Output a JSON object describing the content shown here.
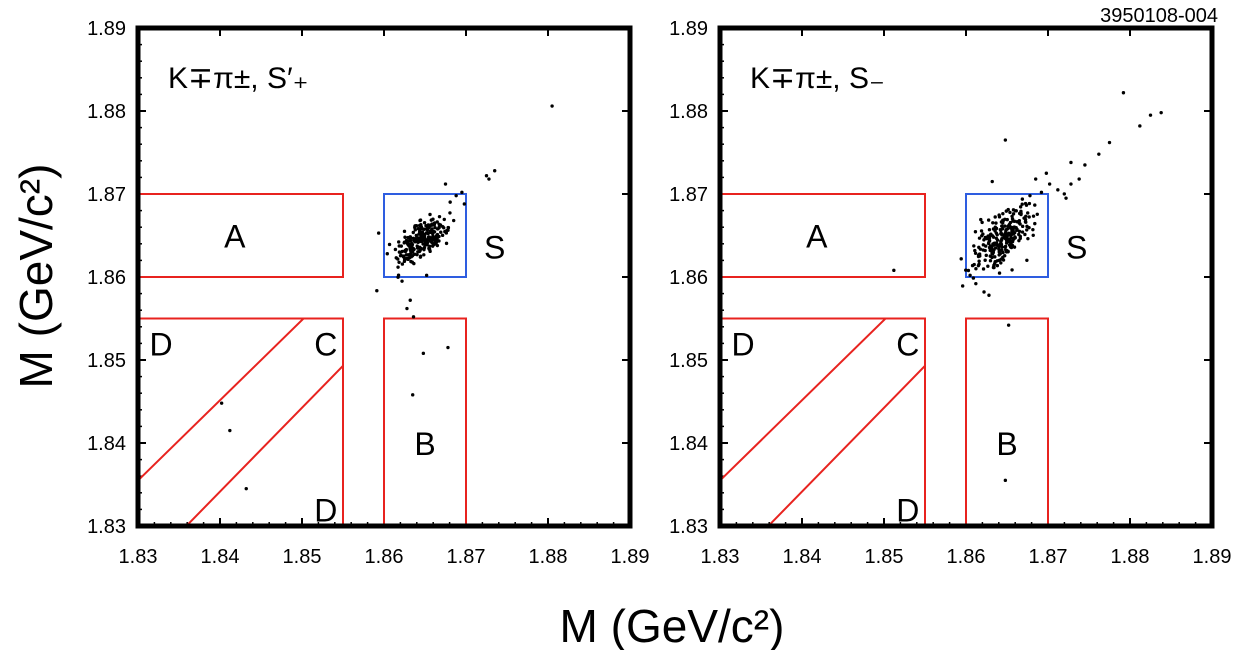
{
  "figure_id": "3950108-004",
  "axis_titles": {
    "x": "M (GeV/c²)",
    "y": "M (GeV/c²)"
  },
  "chart_data": [
    {
      "type": "scatter",
      "title": "K∓π±, S′₊",
      "xlabel": "M (GeV/c²)",
      "ylabel": "M (GeV/c²)",
      "xlim": [
        1.83,
        1.89
      ],
      "ylim": [
        1.83,
        1.89
      ],
      "x_ticks": [
        "1.83",
        "1.84",
        "1.85",
        "1.86",
        "1.87",
        "1.88",
        "1.89"
      ],
      "y_ticks": [
        "1.83",
        "1.84",
        "1.85",
        "1.86",
        "1.87",
        "1.88",
        "1.89"
      ],
      "regions": [
        {
          "label": "A",
          "color": "#e8231f",
          "shape": "rect",
          "x": [
            1.83,
            1.855
          ],
          "y": [
            1.86,
            1.87
          ]
        },
        {
          "label": "S",
          "color": "#2e5de0",
          "shape": "rect",
          "x": [
            1.86,
            1.87
          ],
          "y": [
            1.86,
            1.87
          ]
        },
        {
          "label": "B",
          "color": "#e8231f",
          "shape": "rect",
          "x": [
            1.86,
            1.87
          ],
          "y": [
            1.83,
            1.855
          ]
        },
        {
          "label": "C",
          "color": "#e8231f",
          "shape": "box_with_diagonals",
          "x": [
            1.83,
            1.855
          ],
          "y": [
            1.83,
            1.855
          ]
        },
        {
          "label": "D",
          "color": "#e8231f",
          "shape": "corner_label"
        },
        {
          "label": "D",
          "color": "#e8231f",
          "shape": "corner_label"
        }
      ],
      "signal_cluster": {
        "center": [
          1.8646,
          1.8645
        ],
        "spread": 0.0016,
        "count": 230
      },
      "points": [
        [
          1.8805,
          1.8806
        ],
        [
          1.8735,
          1.8728
        ],
        [
          1.8725,
          1.8722
        ],
        [
          1.8728,
          1.8718
        ],
        [
          1.8695,
          1.8702
        ],
        [
          1.8688,
          1.8698
        ],
        [
          1.8675,
          1.8712
        ],
        [
          1.8698,
          1.8688
        ],
        [
          1.8632,
          1.8572
        ],
        [
          1.8628,
          1.8562
        ],
        [
          1.8636,
          1.8552
        ],
        [
          1.8652,
          1.8602
        ],
        [
          1.8648,
          1.8508
        ],
        [
          1.8678,
          1.8515
        ],
        [
          1.8635,
          1.8458
        ],
        [
          1.8622,
          1.8595
        ],
        [
          1.8402,
          1.8448
        ],
        [
          1.8412,
          1.8415
        ],
        [
          1.8432,
          1.8345
        ],
        [
          1.8625,
          1.8655
        ],
        [
          1.8685,
          1.8668
        ],
        [
          1.8604,
          1.8628
        ]
      ]
    },
    {
      "type": "scatter",
      "title": "K∓π±, S₋",
      "xlabel": "M (GeV/c²)",
      "ylabel": "M (GeV/c²)",
      "xlim": [
        1.83,
        1.89
      ],
      "ylim": [
        1.83,
        1.89
      ],
      "x_ticks": [
        "1.83",
        "1.84",
        "1.85",
        "1.86",
        "1.87",
        "1.88",
        "1.89"
      ],
      "y_ticks": [
        "1.83",
        "1.84",
        "1.85",
        "1.86",
        "1.87",
        "1.88",
        "1.89"
      ],
      "regions": [
        {
          "label": "A",
          "color": "#e8231f",
          "shape": "rect",
          "x": [
            1.83,
            1.855
          ],
          "y": [
            1.86,
            1.87
          ]
        },
        {
          "label": "S",
          "color": "#2e5de0",
          "shape": "rect",
          "x": [
            1.86,
            1.87
          ],
          "y": [
            1.86,
            1.87
          ]
        },
        {
          "label": "B",
          "color": "#e8231f",
          "shape": "rect",
          "x": [
            1.86,
            1.87
          ],
          "y": [
            1.83,
            1.855
          ]
        },
        {
          "label": "C",
          "color": "#e8231f",
          "shape": "box_with_diagonals",
          "x": [
            1.83,
            1.855
          ],
          "y": [
            1.83,
            1.855
          ]
        },
        {
          "label": "D",
          "color": "#e8231f",
          "shape": "corner_label"
        },
        {
          "label": "D",
          "color": "#e8231f",
          "shape": "corner_label"
        }
      ],
      "signal_cluster": {
        "center": [
          1.8643,
          1.8646
        ],
        "spread": 0.0018,
        "count": 250
      },
      "points": [
        [
          1.8792,
          1.8822
        ],
        [
          1.8838,
          1.8798
        ],
        [
          1.8825,
          1.8795
        ],
        [
          1.8812,
          1.8782
        ],
        [
          1.8775,
          1.8762
        ],
        [
          1.8762,
          1.8748
        ],
        [
          1.8745,
          1.8735
        ],
        [
          1.8738,
          1.8718
        ],
        [
          1.8728,
          1.8712
        ],
        [
          1.8712,
          1.8705
        ],
        [
          1.8722,
          1.8695
        ],
        [
          1.8702,
          1.8712
        ],
        [
          1.8692,
          1.8702
        ],
        [
          1.8698,
          1.8725
        ],
        [
          1.8685,
          1.8718
        ],
        [
          1.8648,
          1.8765
        ],
        [
          1.8652,
          1.8542
        ],
        [
          1.8648,
          1.8355
        ],
        [
          1.8512,
          1.8608
        ],
        [
          1.8612,
          1.8592
        ],
        [
          1.8622,
          1.8582
        ],
        [
          1.8628,
          1.8578
        ],
        [
          1.8605,
          1.8602
        ],
        [
          1.8632,
          1.8715
        ],
        [
          1.8678,
          1.8698
        ],
        [
          1.8728,
          1.8738
        ]
      ]
    }
  ]
}
